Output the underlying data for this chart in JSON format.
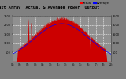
{
  "title": "East Array  Actual & Average Power  Output",
  "bg_color": "#808080",
  "plot_bg_color": "#909090",
  "fill_color": "#cc0000",
  "line_color": "#cc0000",
  "avg_line_color": "#0000ff",
  "grid_color": "#ffffff",
  "title_color": "#000000",
  "ylabel_right": "W",
  "ylim": [
    0,
    2500
  ],
  "yticks": [
    500,
    1000,
    1500,
    2000,
    2500
  ],
  "title_fontsize": 3.8,
  "tick_fontsize": 2.5,
  "legend_fontsize": 2.8,
  "legend_items": [
    "Actual",
    "Average"
  ],
  "legend_colors": [
    "#ff0000",
    "#0000ff"
  ],
  "n_points": 300
}
